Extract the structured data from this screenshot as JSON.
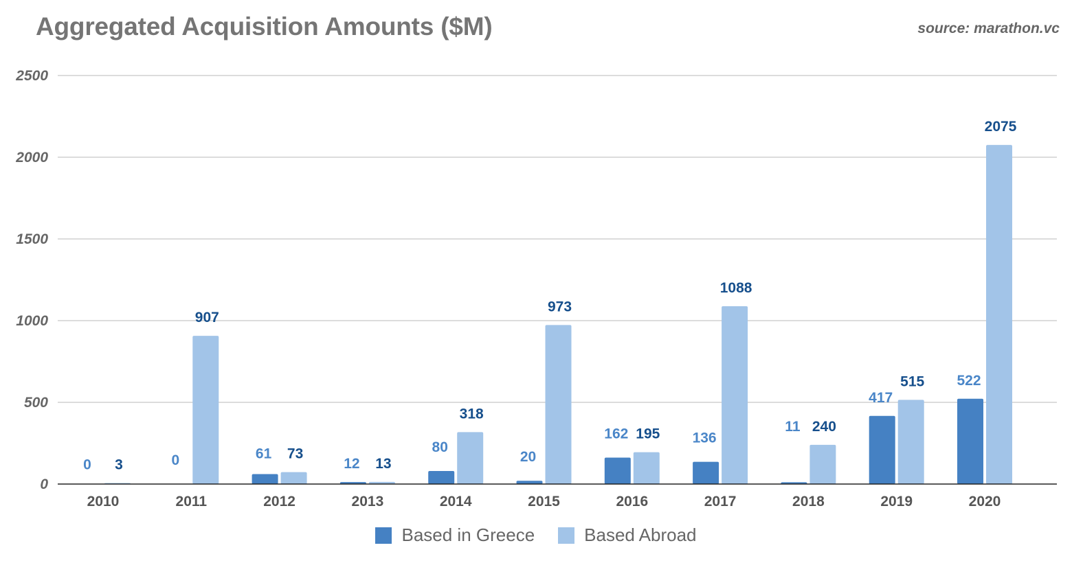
{
  "chart_data": {
    "type": "bar",
    "title": "Aggregated Acquisition Amounts ($M)",
    "source": "source: marathon.vc",
    "categories": [
      "2010",
      "2011",
      "2012",
      "2013",
      "2014",
      "2015",
      "2016",
      "2017",
      "2018",
      "2019",
      "2020"
    ],
    "series": [
      {
        "name": "Based in Greece",
        "color": "#4581c3",
        "label_color": "#4a86c8",
        "values": [
          0,
          0,
          61,
          12,
          80,
          20,
          162,
          136,
          11,
          417,
          522
        ]
      },
      {
        "name": "Based Abroad",
        "color": "#a2c4e8",
        "label_color": "#164f8c",
        "values": [
          3,
          907,
          73,
          13,
          318,
          973,
          195,
          1088,
          240,
          515,
          2075
        ]
      }
    ],
    "yticks": [
      "0",
      "500",
      "1000",
      "1500",
      "2000",
      "2500"
    ],
    "ylim": [
      0,
      2500
    ],
    "xlabel": "",
    "ylabel": "",
    "grid": true,
    "legend_position": "bottom"
  }
}
